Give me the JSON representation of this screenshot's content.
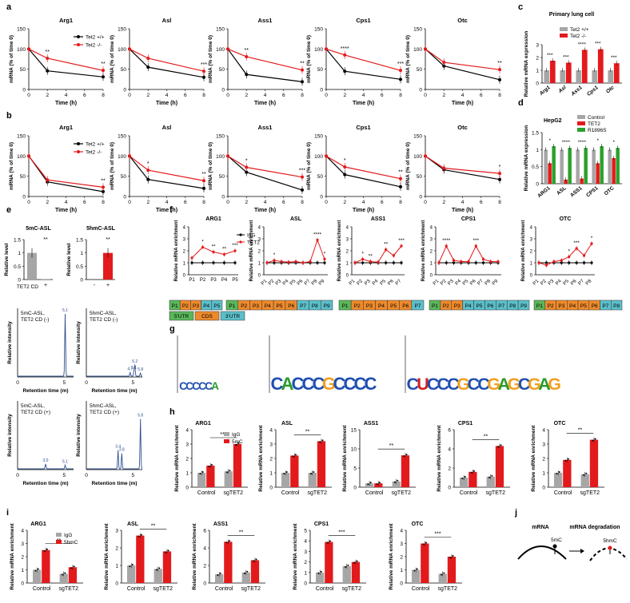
{
  "colors": {
    "black": "#000000",
    "red": "#e31a1c",
    "gray": "#a6a6a6",
    "green": "#2ca02c",
    "trace": "#2f4f8f",
    "green_seg": "#5ab75a",
    "orange_seg": "#ee8a2c",
    "blue_seg": "#5bbfca"
  },
  "panels": {
    "a": "a",
    "b": "b",
    "c": "c",
    "d": "d",
    "e": "e",
    "f": "f",
    "g": "g",
    "h": "h",
    "i": "i",
    "j": "j"
  },
  "common": {
    "time_label": "Time (h)",
    "mrna_label": "mRNA (% of time 0)",
    "enrich_label": "Relative mRNA enrichment",
    "rel_level": "Relative level",
    "rel_intensity": "Relative intensity",
    "retention": "Retention time (m)",
    "rel_expr": "Relative mRNA expression"
  },
  "legend_ab": [
    "Tet2 +/+",
    "Tet2 -/-"
  ],
  "chart_data": [
    {
      "id": "a",
      "type": "line",
      "x": [
        0,
        2,
        8
      ],
      "ylim": [
        0,
        150
      ],
      "yticks": [
        0,
        50,
        100,
        150
      ],
      "xticks": [
        0,
        2,
        4,
        6,
        8
      ],
      "charts": [
        {
          "title": "Arg1",
          "series": [
            {
              "name": "Tet2 +/+",
              "values": [
                100,
                46,
                31
              ]
            },
            {
              "name": "Tet2 -/-",
              "values": [
                100,
                77,
                47
              ]
            }
          ],
          "sig": [
            "**",
            "**"
          ]
        },
        {
          "title": "Asl",
          "series": [
            {
              "name": "Tet2 +/+",
              "values": [
                100,
                55,
                30
              ]
            },
            {
              "name": "Tet2 -/-",
              "values": [
                100,
                77,
                45
              ]
            }
          ],
          "sig": [
            "",
            "***"
          ]
        },
        {
          "title": "Ass1",
          "series": [
            {
              "name": "Tet2 +/+",
              "values": [
                100,
                37,
                19
              ]
            },
            {
              "name": "Tet2 -/-",
              "values": [
                100,
                81,
                48
              ]
            }
          ],
          "sig": [
            "**",
            "**"
          ]
        },
        {
          "title": "Cps1",
          "series": [
            {
              "name": "Tet2 +/+",
              "values": [
                100,
                45,
                25
              ]
            },
            {
              "name": "Tet2 -/-",
              "values": [
                100,
                85,
                47
              ]
            }
          ],
          "sig": [
            "****",
            "***"
          ]
        },
        {
          "title": "Otc",
          "series": [
            {
              "name": "Tet2 +/+",
              "values": [
                100,
                58,
                24
              ]
            },
            {
              "name": "Tet2 -/-",
              "values": [
                100,
                67,
                49
              ]
            }
          ],
          "sig": [
            "",
            "**"
          ]
        }
      ]
    },
    {
      "id": "b",
      "type": "line",
      "x": [
        0,
        2,
        8
      ],
      "ylim": [
        0,
        150
      ],
      "yticks": [
        0,
        50,
        100,
        150
      ],
      "xticks": [
        0,
        2,
        4,
        6,
        8
      ],
      "charts": [
        {
          "title": "Arg1",
          "series": [
            {
              "name": "Tet2 +/+",
              "values": [
                100,
                36,
                12
              ]
            },
            {
              "name": "Tet2 -/-",
              "values": [
                100,
                41,
                23
              ]
            }
          ],
          "sig": [
            "",
            "**"
          ]
        },
        {
          "title": "Asl",
          "series": [
            {
              "name": "Tet2 +/+",
              "values": [
                100,
                42,
                20
              ]
            },
            {
              "name": "Tet2 -/-",
              "values": [
                100,
                65,
                39
              ]
            }
          ],
          "sig": [
            "*",
            "**"
          ]
        },
        {
          "title": "Ass1",
          "series": [
            {
              "name": "Tet2 +/+",
              "values": [
                100,
                60,
                16
              ]
            },
            {
              "name": "Tet2 -/-",
              "values": [
                100,
                72,
                48
              ]
            }
          ],
          "sig": [
            "*",
            "***"
          ]
        },
        {
          "title": "Cps1",
          "series": [
            {
              "name": "Tet2 +/+",
              "values": [
                100,
                54,
                24
              ]
            },
            {
              "name": "Tet2 -/-",
              "values": [
                100,
                73,
                44
              ]
            }
          ],
          "sig": [
            "*",
            "**"
          ]
        },
        {
          "title": "Otc",
          "series": [
            {
              "name": "Tet2 +/+",
              "values": [
                100,
                66,
                42
              ]
            },
            {
              "name": "Tet2 -/-",
              "values": [
                100,
                70,
                57
              ]
            }
          ],
          "sig": [
            "",
            "*"
          ]
        }
      ]
    },
    {
      "id": "c",
      "type": "bar",
      "title": "Primary lung cell",
      "ylabel": "Relative mRNA expression",
      "ylim": [
        0,
        3
      ],
      "yticks": [
        0,
        1,
        2,
        3
      ],
      "categories": [
        "Arg1",
        "Asl",
        "Ass1",
        "Cps1",
        "Otc"
      ],
      "series": [
        {
          "name": "Tet2 +/+",
          "values": [
            1,
            1,
            1,
            1,
            1
          ]
        },
        {
          "name": "Tet2 -/-",
          "values": [
            1.75,
            1.6,
            2.6,
            2.65,
            1.55
          ]
        }
      ],
      "sig": [
        "***",
        "***",
        "****",
        "***",
        "***"
      ]
    },
    {
      "id": "d",
      "type": "bar",
      "title": "HepG2",
      "ylabel": "Relative mRNA expression",
      "ylim": [
        0,
        1.5
      ],
      "yticks": [
        0,
        0.5,
        1,
        1.5
      ],
      "categories": [
        "ARG1",
        "ASL",
        "ASS1",
        "CPS1",
        "OTC"
      ],
      "series": [
        {
          "name": "Control",
          "values": [
            1,
            1,
            1,
            1,
            1
          ]
        },
        {
          "name": "TET2",
          "values": [
            0.6,
            0.12,
            0.15,
            0.6,
            0.75
          ]
        },
        {
          "name": "R1896S",
          "values": [
            1.1,
            1.05,
            1.05,
            1.1,
            1.05
          ]
        }
      ],
      "sig": [
        "*",
        "****",
        "****",
        "*",
        "*"
      ]
    },
    {
      "id": "e",
      "type": "bar",
      "charts": [
        {
          "title": "5mC-ASL",
          "ylabel": "Relative level",
          "ylim": [
            0,
            1.5
          ],
          "yticks": [
            0,
            0.5,
            1,
            1.5
          ],
          "categories": [
            "-",
            "+"
          ],
          "values": [
            1,
            0.02
          ],
          "sig": "**"
        },
        {
          "title": "5hmC-ASL",
          "ylabel": "Relative level",
          "ylim": [
            0,
            1.5
          ],
          "yticks": [
            0,
            0.5,
            1,
            1.5
          ],
          "categories": [
            "-",
            "+"
          ],
          "values": [
            0,
            1
          ],
          "sig": "**"
        }
      ],
      "xlabel": "TET2 CD"
    },
    {
      "id": "f",
      "type": "line",
      "legend": [
        "IgG",
        "TET2"
      ],
      "charts": [
        {
          "title": "ARG1",
          "ylim": [
            0,
            4
          ],
          "yticks": [
            0,
            1,
            2,
            3,
            4
          ],
          "categories": [
            "P1",
            "P2",
            "P3",
            "P4",
            "P5"
          ],
          "igg": [
            1,
            1,
            1,
            1,
            1
          ],
          "tet2": [
            1.4,
            2.3,
            1.9,
            1.7,
            2.0
          ],
          "sig": [
            "",
            "*",
            "**",
            "**",
            "***"
          ]
        },
        {
          "title": "ASL",
          "ylim": [
            0,
            4
          ],
          "yticks": [
            0,
            1,
            2,
            3,
            4
          ],
          "categories": [
            "P1",
            "P2",
            "P3",
            "P4",
            "P5",
            "P6",
            "P7",
            "P8",
            "P9"
          ],
          "igg": [
            1,
            1,
            1,
            1,
            1,
            1,
            1,
            1,
            1
          ],
          "tet2": [
            1,
            1.2,
            1.1,
            1.05,
            1.1,
            1.0,
            1.1,
            2.9,
            1.3
          ],
          "sig": [
            "",
            "*",
            "",
            "",
            "",
            "",
            "",
            "****",
            "*"
          ]
        },
        {
          "title": "ASS1",
          "ylim": [
            0,
            4
          ],
          "yticks": [
            0,
            1,
            2,
            3,
            4
          ],
          "categories": [
            "P1",
            "P2",
            "P3",
            "P4",
            "P5",
            "P6",
            "P7"
          ],
          "igg": [
            1,
            1,
            1,
            1,
            1,
            1,
            1
          ],
          "tet2": [
            1,
            1.3,
            1.1,
            1.05,
            2.1,
            1.6,
            2.4
          ],
          "sig": [
            "",
            "*",
            "**",
            "",
            "**",
            "",
            "***"
          ]
        },
        {
          "title": "CPS1",
          "ylim": [
            0,
            4
          ],
          "yticks": [
            0,
            1,
            2,
            3,
            4
          ],
          "categories": [
            "P1",
            "P2",
            "P3",
            "P4",
            "P5",
            "P6",
            "P7",
            "P8",
            "P9"
          ],
          "igg": [
            1,
            1,
            1,
            1,
            1,
            1,
            1,
            1,
            1
          ],
          "tet2": [
            1,
            2.4,
            1.2,
            1.1,
            1.1,
            2.4,
            1.3,
            1.1,
            1.1
          ],
          "sig": [
            "",
            "****",
            "",
            "",
            "",
            "***",
            "",
            "",
            ""
          ]
        },
        {
          "title": "OTC",
          "ylim": [
            0,
            4
          ],
          "yticks": [
            0,
            1,
            2,
            3,
            4
          ],
          "categories": [
            "P1",
            "P2",
            "P3",
            "P4",
            "P5",
            "P6",
            "P7",
            "P8"
          ],
          "igg": [
            1,
            1,
            1,
            1,
            1,
            1,
            1,
            1
          ],
          "tet2": [
            1,
            0.8,
            1.1,
            1.2,
            1.5,
            2.2,
            1.6,
            2.6
          ],
          "sig": [
            "",
            "",
            "",
            "",
            "*",
            "***",
            "",
            "*"
          ]
        }
      ]
    },
    {
      "id": "h",
      "type": "bar",
      "legend": [
        "IgG",
        "5mC"
      ],
      "groups": [
        "Control",
        "sgTET2"
      ],
      "ylabel": "Relative mRNA enrichment",
      "charts": [
        {
          "title": "ARG1",
          "ylim": [
            0,
            4
          ],
          "yticks": [
            0,
            1,
            2,
            3,
            4
          ],
          "values": [
            1.0,
            1.5,
            1.1,
            3.0
          ],
          "sig": "***"
        },
        {
          "title": "ASL",
          "ylim": [
            0,
            4
          ],
          "yticks": [
            0,
            1,
            2,
            3,
            4
          ],
          "values": [
            1.0,
            2.2,
            1.0,
            3.2
          ],
          "sig": "**"
        },
        {
          "title": "ASS1",
          "ylim": [
            0,
            15
          ],
          "yticks": [
            0,
            5,
            10,
            15
          ],
          "values": [
            1.0,
            1.0,
            1.5,
            8.3
          ],
          "sig": "**"
        },
        {
          "title": "CPS1",
          "ylim": [
            0,
            6
          ],
          "yticks": [
            0,
            2,
            4,
            6
          ],
          "values": [
            1.0,
            1.6,
            1.1,
            4.3
          ],
          "sig": "**"
        },
        {
          "title": "OTC",
          "ylim": [
            0,
            4
          ],
          "yticks": [
            0,
            1,
            2,
            3,
            4
          ],
          "values": [
            1.0,
            1.9,
            0.9,
            3.3
          ],
          "sig": "**"
        }
      ]
    },
    {
      "id": "i",
      "type": "bar",
      "legend": [
        "IgG",
        "5hmC"
      ],
      "groups": [
        "Control",
        "sgTET2"
      ],
      "ylabel": "Relative mRNA enrichment",
      "charts": [
        {
          "title": "ARG1",
          "ylim": [
            0,
            4
          ],
          "yticks": [
            0,
            1,
            2,
            3,
            4
          ],
          "values": [
            1.0,
            2.5,
            0.7,
            1.2
          ],
          "sig": "**"
        },
        {
          "title": "ASL",
          "ylim": [
            0,
            3
          ],
          "yticks": [
            0,
            1,
            2,
            3
          ],
          "values": [
            1.0,
            2.7,
            0.8,
            1.8
          ],
          "sig": "**"
        },
        {
          "title": "ASS1",
          "ylim": [
            0,
            6
          ],
          "yticks": [
            0,
            2,
            4,
            6
          ],
          "values": [
            1.0,
            4.7,
            1.2,
            2.6
          ],
          "sig": "**"
        },
        {
          "title": "CPS1",
          "ylim": [
            0,
            5
          ],
          "yticks": [
            0,
            1,
            2,
            3,
            4,
            5
          ],
          "values": [
            1.0,
            3.9,
            1.6,
            2.0
          ],
          "sig": "***"
        },
        {
          "title": "OTC",
          "ylim": [
            0,
            4
          ],
          "yticks": [
            0,
            1,
            2,
            3,
            4
          ],
          "values": [
            1.0,
            3.0,
            0.7,
            2.0
          ],
          "sig": "***"
        }
      ]
    }
  ],
  "e_legend": {
    "minus": "-",
    "plus": "+"
  },
  "chrom": {
    "panels": [
      {
        "l1": "5mC-ASL,",
        "l2": "TET2 CD (-)",
        "peaks": [
          "5.1"
        ]
      },
      {
        "l1": "5hmC-ASL,",
        "l2": "TET2 CD (-)",
        "peaks": [
          "4.7",
          "5.1",
          "5.2",
          "5.8"
        ]
      },
      {
        "l1": "5mC-ASL,",
        "l2": "TET2 CD (+)",
        "peaks": [
          "3.0",
          "5.1"
        ]
      },
      {
        "l1": "5hmC-ASL,",
        "l2": "TET2 CD (+)",
        "peaks": [
          "3.4",
          "3.8",
          "5.8"
        ]
      }
    ],
    "xticks": [
      "0",
      "5"
    ]
  },
  "segments": [
    {
      "cells": [
        "P1",
        "P2",
        "P3",
        "P4",
        "P5"
      ],
      "types": [
        "g",
        "o",
        "o",
        "b",
        "b"
      ]
    },
    {
      "cells": [
        "P1",
        "P2",
        "P3",
        "P4",
        "P5",
        "P6",
        "P7",
        "P8",
        "P9"
      ],
      "types": [
        "g",
        "o",
        "o",
        "o",
        "o",
        "o",
        "b",
        "b",
        "b"
      ]
    },
    {
      "cells": [
        "P1",
        "P2",
        "P3",
        "P4",
        "P5",
        "P6",
        "P7"
      ],
      "types": [
        "g",
        "o",
        "o",
        "o",
        "o",
        "o",
        "b"
      ]
    },
    {
      "cells": [
        "P1",
        "P2",
        "P3",
        "P4",
        "P5",
        "P6",
        "P7",
        "P8",
        "P9"
      ],
      "types": [
        "g",
        "o",
        "o",
        "b",
        "b",
        "b",
        "b",
        "b",
        "b"
      ]
    },
    {
      "cells": [
        "P1",
        "P2",
        "P3",
        "P4",
        "P5",
        "P6",
        "P7",
        "P8"
      ],
      "types": [
        "g",
        "o",
        "o",
        "o",
        "o",
        "o",
        "b",
        "b"
      ]
    }
  ],
  "region_legend": [
    "5'UTR",
    "CDS",
    "3'UTR"
  ],
  "motifs": [
    [
      "C",
      "C",
      "C",
      "C",
      "C",
      "A"
    ],
    [
      "C",
      "A",
      "C",
      "C",
      "C",
      "G",
      "C",
      "C",
      "C",
      "C"
    ],
    [
      "C",
      "U",
      "C",
      "C",
      "C",
      "G",
      "C",
      "C",
      "G",
      "A",
      "G",
      "C",
      "G",
      "A",
      "G"
    ]
  ],
  "j": {
    "mrna": "mRNA",
    "degradation": "mRNA degradation",
    "mark1": "5mC",
    "mark2": "5hmC"
  }
}
